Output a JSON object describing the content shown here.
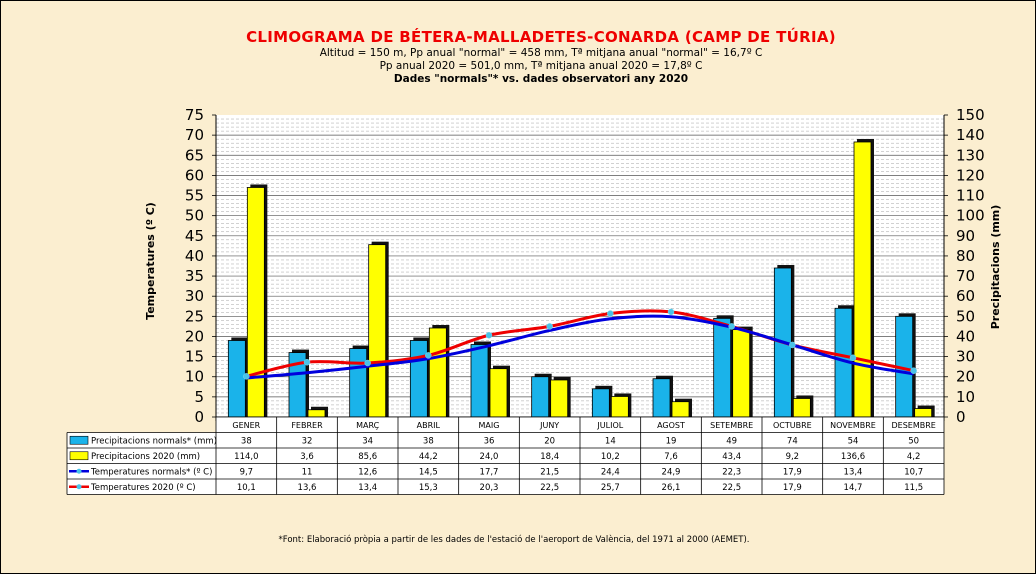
{
  "chart_data": {
    "type": "bar",
    "title": "CLIMOGRAMA DE BÉTERA-MALLADETES-CONARDA (CAMP DE TÚRIA)",
    "subtitles": [
      "Altitud = 150 m, Pp anual \"normal\" = 458 mm, Tª mitjana anual \"normal\" = 16,7º C",
      "Pp anual 2020 = 501,0 mm, Tª mitjana anual 2020 = 17,8º C"
    ],
    "subtitle_bold": "Dades \"normals\"* vs. dades observatori any 2020",
    "ylabel_left": "Temperatures (º C)",
    "ylabel_right": "Precipitacions (mm)",
    "ylim_left": [
      0,
      75
    ],
    "ylim_right": [
      0,
      150
    ],
    "yticks_left": [
      0,
      5,
      10,
      15,
      20,
      25,
      30,
      35,
      40,
      45,
      50,
      55,
      60,
      65,
      70,
      75
    ],
    "yticks_right": [
      0,
      10,
      20,
      30,
      40,
      50,
      60,
      70,
      80,
      90,
      100,
      110,
      120,
      130,
      140,
      150
    ],
    "grid": true,
    "categories": [
      "GENER",
      "FEBRER",
      "MARÇ",
      "ABRIL",
      "MAIG",
      "JUNY",
      "JULIOL",
      "AGOST",
      "SETEMBRE",
      "OCTUBRE",
      "NOVEMBRE",
      "DESEMBRE"
    ],
    "series": [
      {
        "name": "Precipitacions normals* (mm)",
        "kind": "bar",
        "axis": "right",
        "color": "#1ab3ea",
        "values": [
          38,
          32,
          34,
          38,
          36,
          20,
          14,
          19,
          49,
          74,
          54,
          50
        ],
        "labels": [
          "38",
          "32",
          "34",
          "38",
          "36",
          "20",
          "14",
          "19",
          "49",
          "74",
          "54",
          "50"
        ]
      },
      {
        "name": "Precipitacions 2020 (mm)",
        "kind": "bar",
        "axis": "right",
        "color": "#ffff00",
        "values": [
          114.0,
          3.6,
          85.6,
          44.2,
          24.0,
          18.4,
          10.2,
          7.6,
          43.4,
          9.2,
          136.6,
          4.2
        ],
        "labels": [
          "114,0",
          "3,6",
          "85,6",
          "44,2",
          "24,0",
          "18,4",
          "10,2",
          "7,6",
          "43,4",
          "9,2",
          "136,6",
          "4,2"
        ]
      },
      {
        "name": "Temperatures normals* (º C)",
        "kind": "line",
        "axis": "left",
        "color": "#0000dd",
        "values": [
          9.7,
          11,
          12.6,
          14.5,
          17.7,
          21.5,
          24.4,
          24.9,
          22.3,
          17.9,
          13.4,
          10.7
        ],
        "labels": [
          "9,7",
          "11",
          "12,6",
          "14,5",
          "17,7",
          "21,5",
          "24,4",
          "24,9",
          "22,3",
          "17,9",
          "13,4",
          "10,7"
        ]
      },
      {
        "name": "Temperatures 2020 (º C)",
        "kind": "line",
        "axis": "left",
        "color": "#ee0000",
        "values": [
          10.1,
          13.6,
          13.4,
          15.3,
          20.3,
          22.5,
          25.7,
          26.1,
          22.5,
          17.9,
          14.7,
          11.5
        ],
        "labels": [
          "10,1",
          "13,6",
          "13,4",
          "15,3",
          "20,3",
          "22,5",
          "25,7",
          "26,1",
          "22,5",
          "17,9",
          "14,7",
          "11,5"
        ]
      }
    ],
    "footnote": "*Font: Elaboració pròpia a partir de les dades de l'estació de l'aeroport de València, del 1971 al 2000 (AEMET)."
  }
}
